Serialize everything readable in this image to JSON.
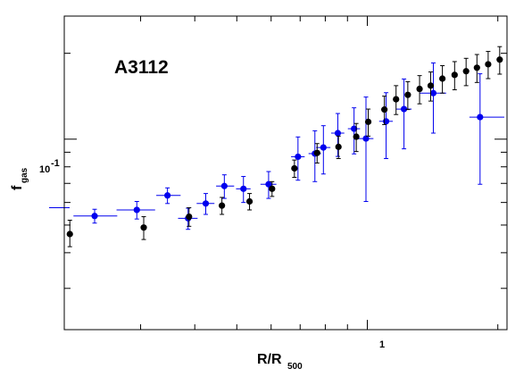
{
  "chart_data": {
    "type": "scatter",
    "title": "",
    "annotation": "A3112",
    "xlabel": {
      "main": "R/R",
      "sub": "500"
    },
    "ylabel": {
      "main": "f",
      "sub": "gas"
    },
    "xscale": "log",
    "yscale": "log",
    "xlim": [
      0.2,
      2.1
    ],
    "ylim": [
      0.0215,
      0.27
    ],
    "xticklabels": [
      {
        "value": 1,
        "label": "1"
      }
    ],
    "yticklabels": [
      {
        "value": 0.1,
        "label": "10",
        "exponent": "-1"
      }
    ],
    "grid": false,
    "legend": "none",
    "colors": {
      "black_series": "#000000",
      "blue_series": "#0000ee",
      "axis": "#000000"
    },
    "series": [
      {
        "color": "#000000",
        "points": [
          {
            "x": 0.206,
            "y": 0.0465,
            "yerr": [
              0.0045,
              0.0055
            ]
          },
          {
            "x": 0.305,
            "y": 0.049,
            "yerr": [
              0.0045,
              0.0045
            ]
          },
          {
            "x": 0.388,
            "y": 0.0535,
            "yerr": [
              0.004,
              0.004
            ]
          },
          {
            "x": 0.462,
            "y": 0.0585,
            "yerr": [
              0.004,
              0.004
            ]
          },
          {
            "x": 0.535,
            "y": 0.0605,
            "yerr": [
              0.004,
              0.004
            ]
          },
          {
            "x": 0.603,
            "y": 0.067,
            "yerr": [
              0.004,
              0.004
            ]
          },
          {
            "x": 0.679,
            "y": 0.079,
            "yerr": [
              0.0055,
              0.0055
            ]
          },
          {
            "x": 0.766,
            "y": 0.0895,
            "yerr": [
              0.007,
              0.007
            ]
          },
          {
            "x": 0.858,
            "y": 0.094,
            "yerr": [
              0.0085,
              0.0085
            ]
          },
          {
            "x": 0.943,
            "y": 0.102,
            "yerr": [
              0.0115,
              0.0115
            ]
          },
          {
            "x": 1.005,
            "y": 0.115,
            "yerr": [
              0.0125,
              0.0125
            ]
          },
          {
            "x": 1.095,
            "y": 0.127,
            "yerr": [
              0.0145,
              0.0145
            ]
          },
          {
            "x": 1.165,
            "y": 0.138,
            "yerr": [
              0.016,
              0.016
            ]
          },
          {
            "x": 1.24,
            "y": 0.143,
            "yerr": [
              0.016,
              0.016
            ]
          },
          {
            "x": 1.32,
            "y": 0.15,
            "yerr": [
              0.017,
              0.017
            ]
          },
          {
            "x": 1.4,
            "y": 0.154,
            "yerr": [
              0.018,
              0.018
            ]
          },
          {
            "x": 1.49,
            "y": 0.163,
            "yerr": [
              0.018,
              0.018
            ]
          },
          {
            "x": 1.59,
            "y": 0.168,
            "yerr": [
              0.019,
              0.019
            ]
          },
          {
            "x": 1.69,
            "y": 0.173,
            "yerr": [
              0.019,
              0.019
            ]
          },
          {
            "x": 1.79,
            "y": 0.178,
            "yerr": [
              0.02,
              0.02
            ]
          },
          {
            "x": 1.9,
            "y": 0.183,
            "yerr": [
              0.02,
              0.02
            ]
          },
          {
            "x": 2.02,
            "y": 0.19,
            "yerr": [
              0.021,
              0.021
            ]
          }
        ]
      },
      {
        "color": "#0000ee",
        "points": [
          {
            "x": 0.235,
            "y": 0.0538,
            "xerr": [
              0.025,
              0.03
            ],
            "yerr": [
              0.003,
              0.003
            ]
          },
          {
            "x": 0.294,
            "y": 0.0565,
            "xerr": [
              0.03,
              0.03
            ],
            "yerr": [
              0.004,
              0.004
            ]
          },
          {
            "x": 0.346,
            "y": 0.0635,
            "xerr": [
              0.02,
              0.025
            ],
            "yerr": [
              0.004,
              0.004
            ]
          },
          {
            "x": 0.386,
            "y": 0.0528,
            "xerr": [
              0.02,
              0.02
            ],
            "yerr": [
              0.0045,
              0.0045
            ]
          },
          {
            "x": 0.424,
            "y": 0.0595,
            "xerr": [
              0.02,
              0.02
            ],
            "yerr": [
              0.005,
              0.005
            ]
          },
          {
            "x": 0.468,
            "y": 0.0685,
            "xerr": [
              0.02,
              0.025
            ],
            "yerr": [
              0.0065,
              0.0065
            ]
          },
          {
            "x": 0.518,
            "y": 0.067,
            "xerr": [
              0.02,
              0.02
            ],
            "yerr": [
              0.007,
              0.007
            ]
          },
          {
            "x": 0.592,
            "y": 0.0695,
            "xerr": [
              0.025,
              0.025
            ],
            "yerr": [
              0.0075,
              0.0075
            ]
          },
          {
            "x": 0.692,
            "y": 0.0868,
            "xerr": [
              0.025,
              0.025
            ],
            "yerr": [
              0.015,
              0.015
            ]
          },
          {
            "x": 0.757,
            "y": 0.089,
            "xerr": [
              0.025,
              0.025
            ],
            "yerr": [
              0.018,
              0.018
            ]
          },
          {
            "x": 0.792,
            "y": 0.0935,
            "xerr": [
              0.03,
              0.03
            ],
            "yerr": [
              0.018,
              0.018
            ]
          },
          {
            "x": 0.855,
            "y": 0.105,
            "xerr": [
              0.03,
              0.03
            ],
            "yerr": [
              0.018,
              0.018
            ]
          },
          {
            "x": 0.932,
            "y": 0.1088,
            "xerr": [
              0.03,
              0.03
            ],
            "yerr": [
              0.02,
              0.02
            ]
          },
          {
            "x": 0.993,
            "y": 0.1005,
            "xerr": [
              0.04,
              0.04
            ],
            "yerr": [
              0.04,
              0.04
            ]
          },
          {
            "x": 1.105,
            "y": 0.1155,
            "xerr": [
              0.04,
              0.04
            ],
            "yerr": [
              0.03,
              0.03
            ]
          },
          {
            "x": 1.215,
            "y": 0.1275,
            "xerr": [
              0.05,
              0.05
            ],
            "yerr": [
              0.035,
              0.035
            ]
          },
          {
            "x": 1.42,
            "y": 0.145,
            "xerr": [
              0.1,
              0.1
            ],
            "yerr": [
              0.04,
              0.04
            ]
          },
          {
            "x": 1.82,
            "y": 0.1195,
            "xerr": [
              0.1,
              0.25
            ],
            "yerr": [
              0.05,
              0.05
            ]
          }
        ]
      }
    ]
  }
}
